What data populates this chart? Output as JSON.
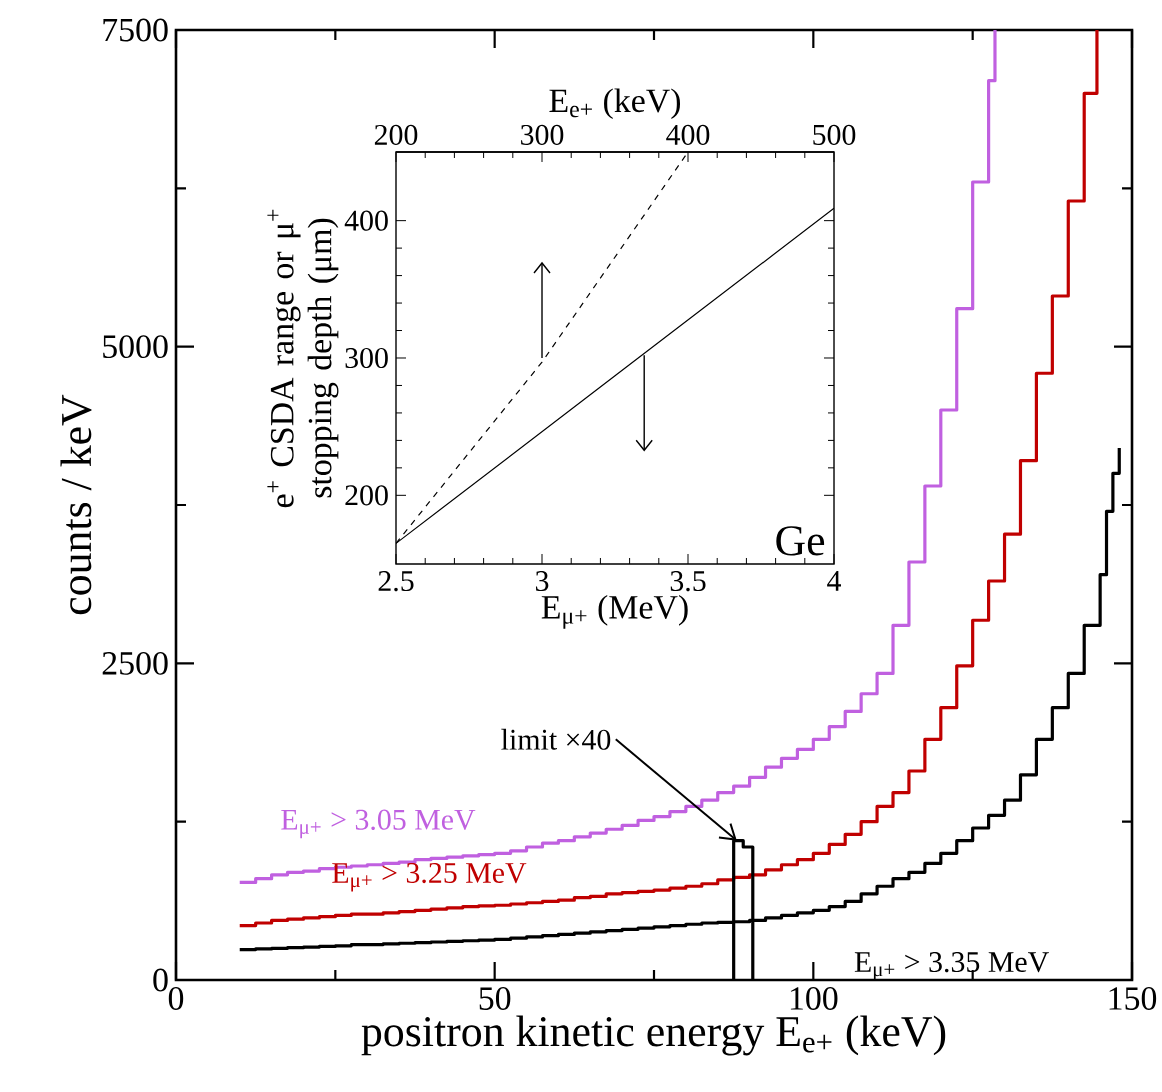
{
  "chart_data": [
    {
      "type": "step",
      "xlabel": "positron kinetic energy E$_{e+}$ (keV)",
      "ylabel": "counts / keV",
      "xlim": [
        0,
        150
      ],
      "ylim": [
        0,
        7500
      ],
      "xticks": [
        0,
        50,
        100,
        150
      ],
      "yticks": [
        0,
        2500,
        5000,
        7500
      ],
      "annotations": [
        {
          "text": "limit ×40",
          "x": 88,
          "y": 1100
        }
      ],
      "series": [
        {
          "name": "E$_{μ+}$ > 3.05 MeV",
          "color": "#c060e0",
          "x": [
            10,
            12.5,
            15,
            17.5,
            20,
            22.5,
            25,
            27.5,
            30,
            32.5,
            35,
            37.5,
            40,
            42.5,
            45,
            47.5,
            50,
            52.5,
            55,
            57.5,
            60,
            62.5,
            65,
            67.5,
            70,
            72.5,
            75,
            77.5,
            80,
            82.5,
            85,
            87.5,
            90,
            92.5,
            95,
            97.5,
            100,
            102.5,
            105,
            107.5,
            110,
            112.5,
            115,
            117.5,
            120,
            122.5,
            125,
            127.5,
            128.5
          ],
          "values": [
            770,
            800,
            830,
            850,
            860,
            880,
            890,
            900,
            910,
            920,
            930,
            950,
            960,
            970,
            980,
            990,
            1000,
            1020,
            1050,
            1080,
            1100,
            1130,
            1160,
            1190,
            1220,
            1260,
            1290,
            1330,
            1370,
            1420,
            1480,
            1530,
            1600,
            1680,
            1750,
            1820,
            1900,
            2000,
            2120,
            2260,
            2420,
            2800,
            3300,
            3900,
            4500,
            5300,
            6300,
            7100,
            7500
          ]
        },
        {
          "name": "E$_{μ+}$ > 3.25 MeV",
          "color": "#c00000",
          "x": [
            10,
            12.5,
            15,
            17.5,
            20,
            22.5,
            25,
            27.5,
            30,
            32.5,
            35,
            37.5,
            40,
            42.5,
            45,
            47.5,
            50,
            52.5,
            55,
            57.5,
            60,
            62.5,
            65,
            67.5,
            70,
            72.5,
            75,
            77.5,
            80,
            82.5,
            85,
            87.5,
            90,
            92.5,
            95,
            97.5,
            100,
            102.5,
            105,
            107.5,
            110,
            112.5,
            115,
            117.5,
            120,
            122.5,
            125,
            127.5,
            130,
            132.5,
            135,
            137.5,
            140,
            142.5,
            144.5
          ],
          "values": [
            430,
            450,
            470,
            480,
            490,
            500,
            510,
            520,
            520,
            530,
            540,
            550,
            560,
            570,
            580,
            585,
            590,
            600,
            610,
            620,
            630,
            650,
            660,
            680,
            690,
            700,
            710,
            725,
            740,
            760,
            790,
            810,
            830,
            870,
            910,
            950,
            1000,
            1070,
            1150,
            1250,
            1370,
            1480,
            1650,
            1900,
            2150,
            2480,
            2840,
            3150,
            3520,
            4100,
            4790,
            5400,
            6150,
            7000,
            7500
          ]
        },
        {
          "name": "E$_{μ+}$ > 3.35 MeV",
          "color": "#000000",
          "x": [
            10,
            12.5,
            15,
            17.5,
            20,
            22.5,
            25,
            27.5,
            30,
            32.5,
            35,
            37.5,
            40,
            42.5,
            45,
            47.5,
            50,
            52.5,
            55,
            57.5,
            60,
            62.5,
            65,
            67.5,
            70,
            72.5,
            75,
            77.5,
            80,
            82.5,
            85,
            87.5,
            90,
            92.5,
            95,
            97.5,
            100,
            102.5,
            105,
            107.5,
            110,
            112.5,
            115,
            117.5,
            120,
            122.5,
            125,
            127.5,
            130,
            132.5,
            135,
            137.5,
            140,
            142.5,
            145,
            146,
            147,
            148
          ],
          "values": [
            240,
            245,
            250,
            255,
            260,
            265,
            270,
            280,
            280,
            285,
            290,
            295,
            300,
            305,
            310,
            315,
            320,
            330,
            340,
            350,
            360,
            370,
            380,
            390,
            400,
            410,
            420,
            430,
            440,
            450,
            455,
            460,
            470,
            490,
            510,
            530,
            550,
            580,
            620,
            680,
            740,
            800,
            850,
            920,
            1000,
            1100,
            1200,
            1300,
            1420,
            1620,
            1900,
            2150,
            2420,
            2800,
            3200,
            3700,
            4000,
            4200
          ]
        },
        {
          "color": "#000000",
          "x": [
            87.5,
            87.5,
            89,
            90.5
          ],
          "values": [
            0,
            1100,
            1050,
            0
          ]
        }
      ]
    },
    {
      "type": "line",
      "xlabel": "E$_{μ+}$ (MeV)",
      "x2label": "E$_{e+}$ (keV)",
      "ylabel": "e$^{+}$ CSDA range or μ$^{+}$ stopping depth (μm)",
      "xlim": [
        2.5,
        4
      ],
      "x2lim": [
        200,
        500
      ],
      "ylim": [
        150,
        450
      ],
      "xticks": [
        2.5,
        3,
        3.5,
        4
      ],
      "x2ticks": [
        200,
        300,
        400,
        500
      ],
      "yticks": [
        200,
        300,
        400
      ],
      "annotations": [
        "Ge"
      ],
      "series": [
        {
          "color": "#000000",
          "line_style": "solid",
          "x": [
            2.5,
            3.25,
            4
          ],
          "values": [
            165,
            287,
            409
          ]
        },
        {
          "color": "#000000",
          "line_style": "dashed",
          "axis": "x2",
          "x": [
            200,
            300,
            400
          ],
          "values": [
            165,
            297,
            450
          ]
        }
      ]
    }
  ]
}
